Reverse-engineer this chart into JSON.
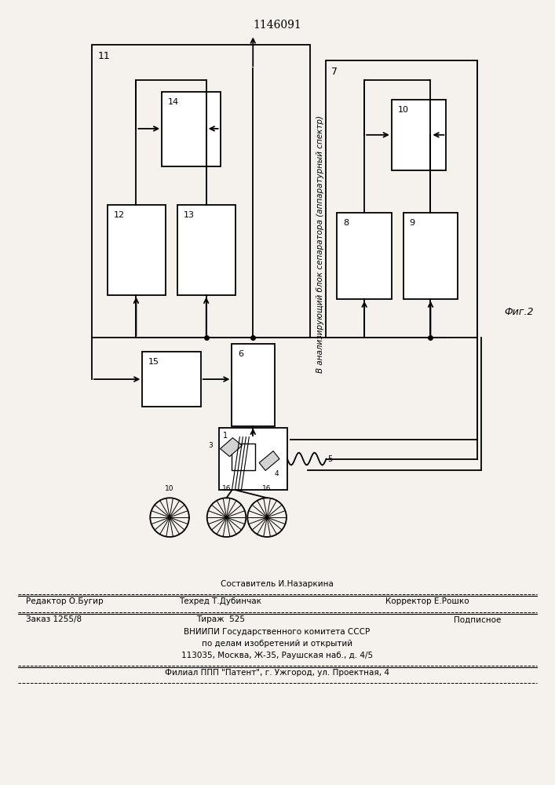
{
  "title": "1146091",
  "fig_label": "Фиг.2",
  "bg_color": "#f5f2ee",
  "rotated_text": "В анализирующий блок сепаратора (аппаратурный спектр)",
  "footer": {
    "line1_center": "Составитель И.Назаркина",
    "line2_left": "Редактор О.Бугир",
    "line2_center": "Техред Т.Дубинчак",
    "line2_right": "Корректор Е.Рошко",
    "line3_left": "Заказ 1255/8",
    "line3_center": "Тираж  525",
    "line3_right": "Подписное",
    "line4": "ВНИИПИ Государственного комитета СССР",
    "line5": "по делам изобретений и открытий",
    "line6": "113035, Москва, Ж-35, Раушская наб., д. 4/5",
    "line7": "Филиал ППП \"Патент\", г. Ужгород, ул. Проектная, 4"
  }
}
